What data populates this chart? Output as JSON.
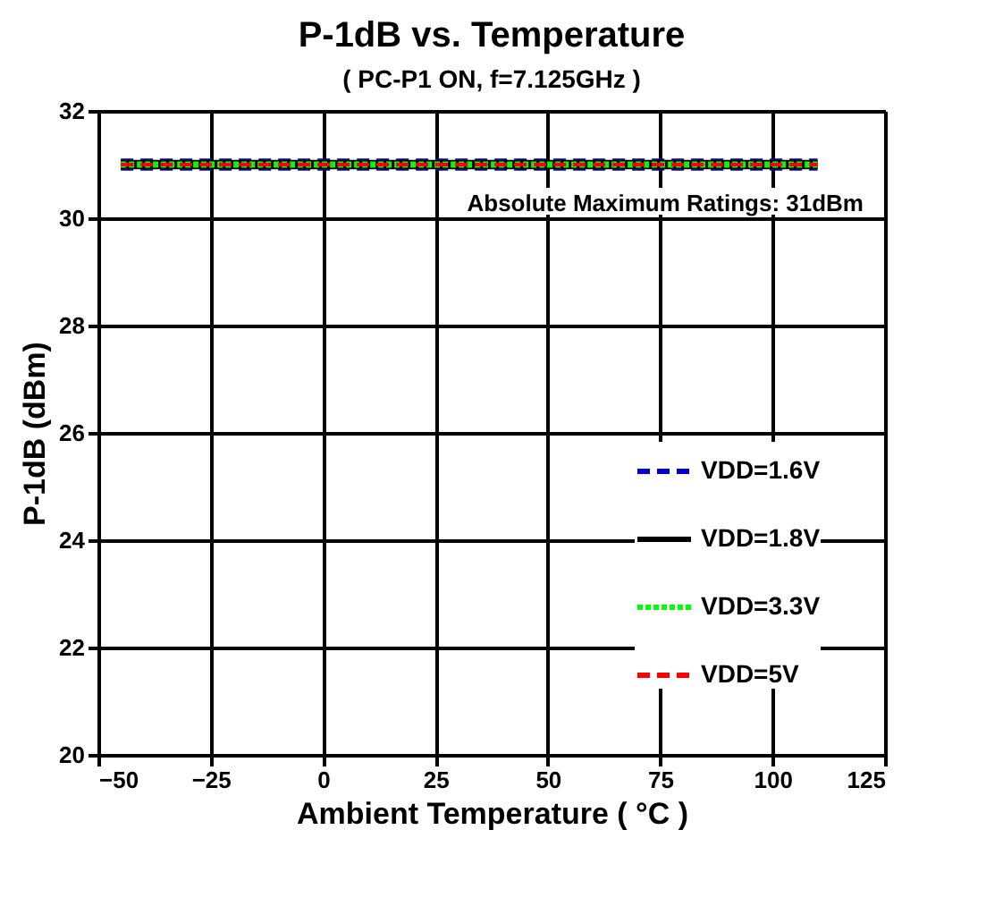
{
  "chart_data": {
    "type": "line",
    "title": "P-1dB vs. Temperature",
    "subtitle": "( PC-P1 ON, f=7.125GHz )",
    "xlabel": "Ambient Temperature ( °C )",
    "ylabel": "P-1dB (dBm)",
    "x": [
      -45,
      110
    ],
    "series": [
      {
        "name": "VDD=1.6V",
        "color": "#0000cc",
        "line_style": "dashed",
        "values": [
          31,
          31
        ]
      },
      {
        "name": "VDD=1.8V",
        "color": "#000000",
        "line_style": "solid",
        "values": [
          31,
          31
        ]
      },
      {
        "name": "VDD=3.3V",
        "color": "#00ff00",
        "line_style": "dotted",
        "values": [
          31,
          31
        ]
      },
      {
        "name": "VDD=5V",
        "color": "#ff0000",
        "line_style": "dashed",
        "values": [
          31,
          31
        ]
      }
    ],
    "xlim": [
      -50,
      125
    ],
    "xticks": [
      -50,
      -25,
      0,
      25,
      50,
      75,
      100,
      125
    ],
    "ylim": [
      20,
      32
    ],
    "yticks": [
      20,
      22,
      24,
      26,
      28,
      30,
      32
    ],
    "annotations": [
      "Absolute Maximum Ratings: 31dBm"
    ],
    "grid": true,
    "legend": "bottom right",
    "marker": "none"
  }
}
